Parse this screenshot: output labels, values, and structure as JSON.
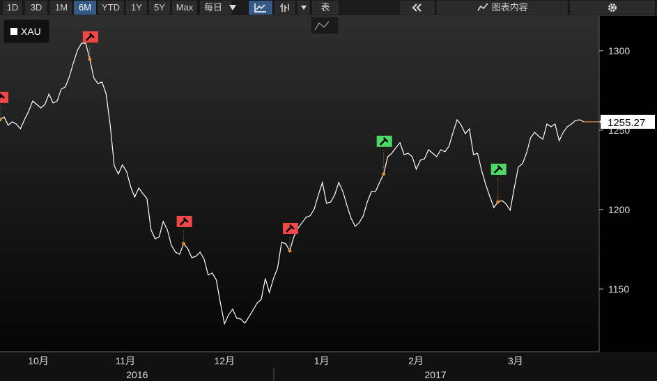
{
  "toolbar": {
    "ranges": [
      "1D",
      "3D",
      "1M",
      "6M",
      "YTD",
      "1Y",
      "5Y",
      "Max"
    ],
    "frequency": "每日",
    "table": "表",
    "content": "图表内容"
  },
  "chart_data": {
    "type": "line",
    "series": [
      {
        "name": "XAU",
        "color": "#ffffff",
        "values": [
          1256.6,
          1258.3,
          1253.1,
          1255.3,
          1253.9,
          1250.9,
          1256.6,
          1261.8,
          1268.4,
          1266.2,
          1264.0,
          1266.2,
          1272.8,
          1267.1,
          1268.4,
          1275.9,
          1277.2,
          1283.8,
          1292.5,
          1300.4,
          1304.8,
          1304.8,
          1294.7,
          1282.9,
          1279.4,
          1280.3,
          1272.8,
          1253.1,
          1227.6,
          1222.4,
          1228.1,
          1224.1,
          1214.5,
          1207.9,
          1213.6,
          1210.1,
          1207.0,
          1187.3,
          1181.6,
          1182.9,
          1192.5,
          1187.3,
          1177.6,
          1173.2,
          1171.9,
          1178.5,
          1175.4,
          1169.7,
          1170.6,
          1173.2,
          1168.9,
          1158.8,
          1160.1,
          1155.7,
          1141.2,
          1128.1,
          1133.8,
          1137.3,
          1131.6,
          1131.1,
          1128.5,
          1132.5,
          1136.8,
          1141.2,
          1143.4,
          1156.6,
          1147.8,
          1156.6,
          1163.2,
          1179.4,
          1178.5,
          1174.1,
          1182.9,
          1188.2,
          1191.7,
          1195.2,
          1196.1,
          1200.4,
          1209.2,
          1217.1,
          1203.9,
          1204.8,
          1209.2,
          1217.1,
          1211.4,
          1202.6,
          1194.7,
          1189.5,
          1191.7,
          1196.1,
          1204.8,
          1211.4,
          1211.4,
          1217.1,
          1222.4,
          1233.3,
          1235.5,
          1239.0,
          1242.1,
          1234.6,
          1235.5,
          1233.3,
          1225.4,
          1231.1,
          1232.0,
          1237.7,
          1235.5,
          1233.3,
          1237.7,
          1236.4,
          1239.9,
          1248.7,
          1256.6,
          1253.1,
          1247.8,
          1250.9,
          1234.6,
          1235.5,
          1224.6,
          1215.8,
          1208.3,
          1201.3,
          1204.8,
          1205.7,
          1203.5,
          1199.6,
          1213.6,
          1226.8,
          1228.9,
          1235.5,
          1245.2,
          1248.7,
          1246.1,
          1244.3,
          1253.9,
          1252.2,
          1253.9,
          1243.4,
          1248.7,
          1252.2,
          1253.9,
          1256.1,
          1256.6,
          1255.27
        ]
      }
    ],
    "last_color": "#e08a2c",
    "markers": [
      {
        "x": 0,
        "color": "#f04848"
      },
      {
        "x": 22,
        "color": "#f04848"
      },
      {
        "x": 45,
        "color": "#f04848"
      },
      {
        "x": 71,
        "color": "#f04848"
      },
      {
        "x": 94,
        "color": "#4cd964"
      },
      {
        "x": 122,
        "color": "#4cd964"
      }
    ],
    "xlim": [
      0,
      146.8
    ],
    "xticks": [
      {
        "value": 9.4,
        "label": "10月"
      },
      {
        "value": 30.7,
        "label": "11月"
      },
      {
        "value": 55,
        "label": "12月"
      },
      {
        "value": 78.8,
        "label": "1月"
      },
      {
        "value": 101.9,
        "label": "2月"
      },
      {
        "value": 126.3,
        "label": "3月"
      }
    ],
    "year_ticks": [
      {
        "value": 33.6,
        "label": "2016"
      },
      {
        "value": 106.7,
        "label": "2017"
      }
    ],
    "ylim": [
      1110.5,
      1323.2
    ],
    "yticks": [
      1150,
      1200,
      1250,
      1300
    ]
  }
}
